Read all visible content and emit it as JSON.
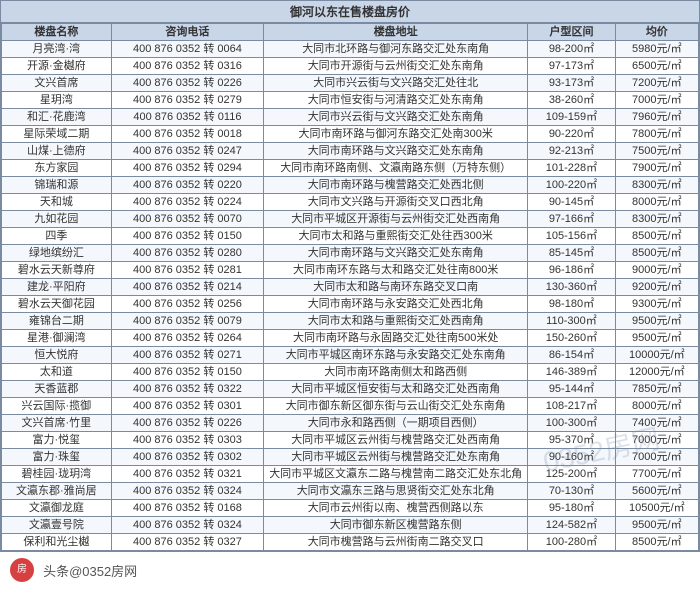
{
  "title": "御河以东在售楼盘房价",
  "footer": {
    "avatar_text": "房",
    "source": "头条@0352房网"
  },
  "watermark": "0352房网",
  "columns": [
    {
      "key": "name",
      "label": "楼盘名称",
      "class": "col-name"
    },
    {
      "key": "phone",
      "label": "咨询电话",
      "class": "col-phone"
    },
    {
      "key": "addr",
      "label": "楼盘地址",
      "class": "col-addr"
    },
    {
      "key": "area",
      "label": "户型区间",
      "class": "col-area"
    },
    {
      "key": "price",
      "label": "均价",
      "class": "col-price"
    }
  ],
  "rows": [
    {
      "name": "月亮湾·湾",
      "phone": "400 876 0352 转 0064",
      "addr": "大同市北环路与御河东路交汇处东南角",
      "area": "98-200㎡",
      "price": "5980元/㎡"
    },
    {
      "name": "开源·金樾府",
      "phone": "400 876 0352 转 0316",
      "addr": "大同市开源街与云州街交汇处东南角",
      "area": "97-173㎡",
      "price": "6500元/㎡"
    },
    {
      "name": "文兴首席",
      "phone": "400 876 0352 转 0226",
      "addr": "大同市兴云街与文兴路交汇处往北",
      "area": "93-173㎡",
      "price": "7200元/㎡"
    },
    {
      "name": "星玥湾",
      "phone": "400 876 0352 转 0279",
      "addr": "大同市恒安街与河清路交汇处东南角",
      "area": "38-260㎡",
      "price": "7000元/㎡"
    },
    {
      "name": "和汇·花鹿湾",
      "phone": "400 876 0352 转 0116",
      "addr": "大同市兴云街与文兴路交汇处东南角",
      "area": "109-159㎡",
      "price": "7960元/㎡"
    },
    {
      "name": "星际荣域二期",
      "phone": "400 876 0352 转 0018",
      "addr": "大同市南环路与御河东路交汇处南300米",
      "area": "90-220㎡",
      "price": "7800元/㎡"
    },
    {
      "name": "山煤·上德府",
      "phone": "400 876 0352 转 0247",
      "addr": "大同市南环路与文兴路交汇处东南角",
      "area": "92-213㎡",
      "price": "7500元/㎡"
    },
    {
      "name": "东方家园",
      "phone": "400 876 0352 转 0294",
      "addr": "大同市南环路南侧、文瀛南路东侧（万特东侧）",
      "area": "101-228㎡",
      "price": "7900元/㎡"
    },
    {
      "name": "锦瑞和源",
      "phone": "400 876 0352 转 0220",
      "addr": "大同市南环路与槐营路交汇处西北侧",
      "area": "100-220㎡",
      "price": "8300元/㎡"
    },
    {
      "name": "天和城",
      "phone": "400 876 0352 转 0224",
      "addr": "大同市文兴路与开源街交叉口西北角",
      "area": "90-145㎡",
      "price": "8000元/㎡"
    },
    {
      "name": "九如花园",
      "phone": "400 876 0352 转 0070",
      "addr": "大同市平城区开源街与云州街交汇处西南角",
      "area": "97-166㎡",
      "price": "8300元/㎡"
    },
    {
      "name": "四季",
      "phone": "400 876 0352 转 0150",
      "addr": "大同市太和路与重熙街交汇处往西300米",
      "area": "105-156㎡",
      "price": "8500元/㎡"
    },
    {
      "name": "绿地缤纷汇",
      "phone": "400 876 0352 转 0280",
      "addr": "大同市南环路与文兴路交汇处东南角",
      "area": "85-145㎡",
      "price": "8500元/㎡"
    },
    {
      "name": "碧水云天新尊府",
      "phone": "400 876 0352 转 0281",
      "addr": "大同市南环东路与太和路交汇处往南800米",
      "area": "96-186㎡",
      "price": "9000元/㎡"
    },
    {
      "name": "建龙·平阳府",
      "phone": "400 876 0352 转 0214",
      "addr": "大同市太和路与南环东路交叉口南",
      "area": "130-360㎡",
      "price": "9200元/㎡"
    },
    {
      "name": "碧水云天御花园",
      "phone": "400 876 0352 转 0256",
      "addr": "大同市南环路与永安路交汇处西北角",
      "area": "98-180㎡",
      "price": "9300元/㎡"
    },
    {
      "name": "雍锦台二期",
      "phone": "400 876 0352 转 0079",
      "addr": "大同市太和路与重熙街交汇处西南角",
      "area": "110-300㎡",
      "price": "9500元/㎡"
    },
    {
      "name": "星港·御澜湾",
      "phone": "400 876 0352 转 0264",
      "addr": "大同市南环路与永固路交汇处往南500米处",
      "area": "150-260㎡",
      "price": "9500元/㎡"
    },
    {
      "name": "恒大悦府",
      "phone": "400 876 0352 转 0271",
      "addr": "大同市平城区南环东路与永安路交汇处东南角",
      "area": "86-154㎡",
      "price": "10000元/㎡"
    },
    {
      "name": "太和道",
      "phone": "400 876 0352 转 0150",
      "addr": "大同市南环路南侧太和路西侧",
      "area": "146-389㎡",
      "price": "12000元/㎡"
    },
    {
      "name": "天香蓝郡",
      "phone": "400 876 0352 转 0322",
      "addr": "大同市平城区恒安街与太和路交汇处西南角",
      "area": "95-144㎡",
      "price": "7850元/㎡"
    },
    {
      "name": "兴云国际·揽御",
      "phone": "400 876 0352 转 0301",
      "addr": "大同市御东新区御东街与云山街交汇处东南角",
      "area": "108-217㎡",
      "price": "8000元/㎡"
    },
    {
      "name": "文兴首席·竹里",
      "phone": "400 876 0352 转 0226",
      "addr": "大同市永和路西侧（一期项目西侧）",
      "area": "100-300㎡",
      "price": "7400元/㎡"
    },
    {
      "name": "富力·悦玺",
      "phone": "400 876 0352 转 0303",
      "addr": "大同市平城区云州街与槐营路交汇处西南角",
      "area": "95-370㎡",
      "price": "7000元/㎡"
    },
    {
      "name": "富力·珠玺",
      "phone": "400 876 0352 转 0302",
      "addr": "大同市平城区云州街与槐营路交汇处东南角",
      "area": "90-160㎡",
      "price": "7000元/㎡"
    },
    {
      "name": "碧桂园·珑玥湾",
      "phone": "400 876 0352 转 0321",
      "addr": "大同市平城区文瀛东二路与槐营南二路交汇处东北角",
      "area": "125-200㎡",
      "price": "7700元/㎡"
    },
    {
      "name": "文瀛东郡·雅尚居",
      "phone": "400 876 0352 转 0324",
      "addr": "大同市文瀛东三路与思贤街交汇处东北角",
      "area": "70-130㎡",
      "price": "5600元/㎡"
    },
    {
      "name": "文瀛御龙庭",
      "phone": "400 876 0352 转 0168",
      "addr": "大同市云州街以南、槐营西侧路以东",
      "area": "95-180㎡",
      "price": "10500元/㎡"
    },
    {
      "name": "文瀛壹号院",
      "phone": "400 876 0352 转 0324",
      "addr": "大同市御东新区槐营路东侧",
      "area": "124-582㎡",
      "price": "9500元/㎡"
    },
    {
      "name": "保利和光尘樾",
      "phone": "400 876 0352 转 0327",
      "addr": "大同市槐营路与云州街南二路交叉口",
      "area": "100-280㎡",
      "price": "8500元/㎡"
    }
  ]
}
